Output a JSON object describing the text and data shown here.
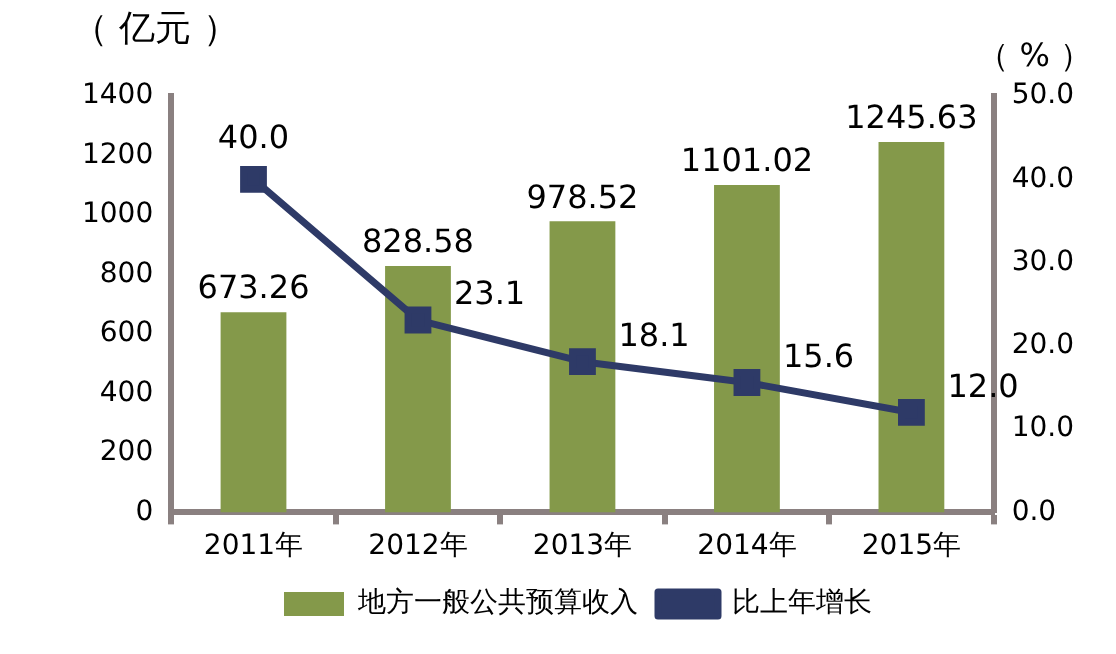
{
  "chart_data": {
    "type": "bar",
    "ylabel": "（ 亿元 ）",
    "y2label": "（ % ）",
    "categories": [
      "2011年",
      "2012年",
      "2013年",
      "2014年",
      "2015年"
    ],
    "series": [
      {
        "name": "地方一般公共预算收入",
        "color": "#84994a",
        "values": [
          673.26,
          828.58,
          978.52,
          1101.02,
          1245.63
        ]
      },
      {
        "name": "比上年增长",
        "type": "line",
        "axis": "y2",
        "color": "#2e3a67",
        "marker": "square",
        "values": [
          40.0,
          23.1,
          18.1,
          15.6,
          12.0
        ],
        "value_labels": [
          "40.0",
          "23.1",
          "18.1",
          "15.6",
          "12.0"
        ]
      }
    ],
    "value_labels": [
      "673.26",
      "828.58",
      "978.52",
      "1101.02",
      "1245.63"
    ],
    "ylim": [
      0,
      1400
    ],
    "yticks": [
      0,
      200,
      400,
      600,
      800,
      1000,
      1200,
      1400
    ],
    "y2lim": [
      0,
      50
    ],
    "y2ticks": [
      {
        "value": 0,
        "label": "0.0"
      },
      {
        "value": 10,
        "label": "10.0"
      },
      {
        "value": 20,
        "label": "20.0"
      },
      {
        "value": 30,
        "label": "30.0"
      },
      {
        "value": 40,
        "label": "40.0"
      },
      {
        "value": 50,
        "label": "50.0"
      }
    ],
    "grid": false,
    "legend": "bottom",
    "line_style": "solid"
  }
}
